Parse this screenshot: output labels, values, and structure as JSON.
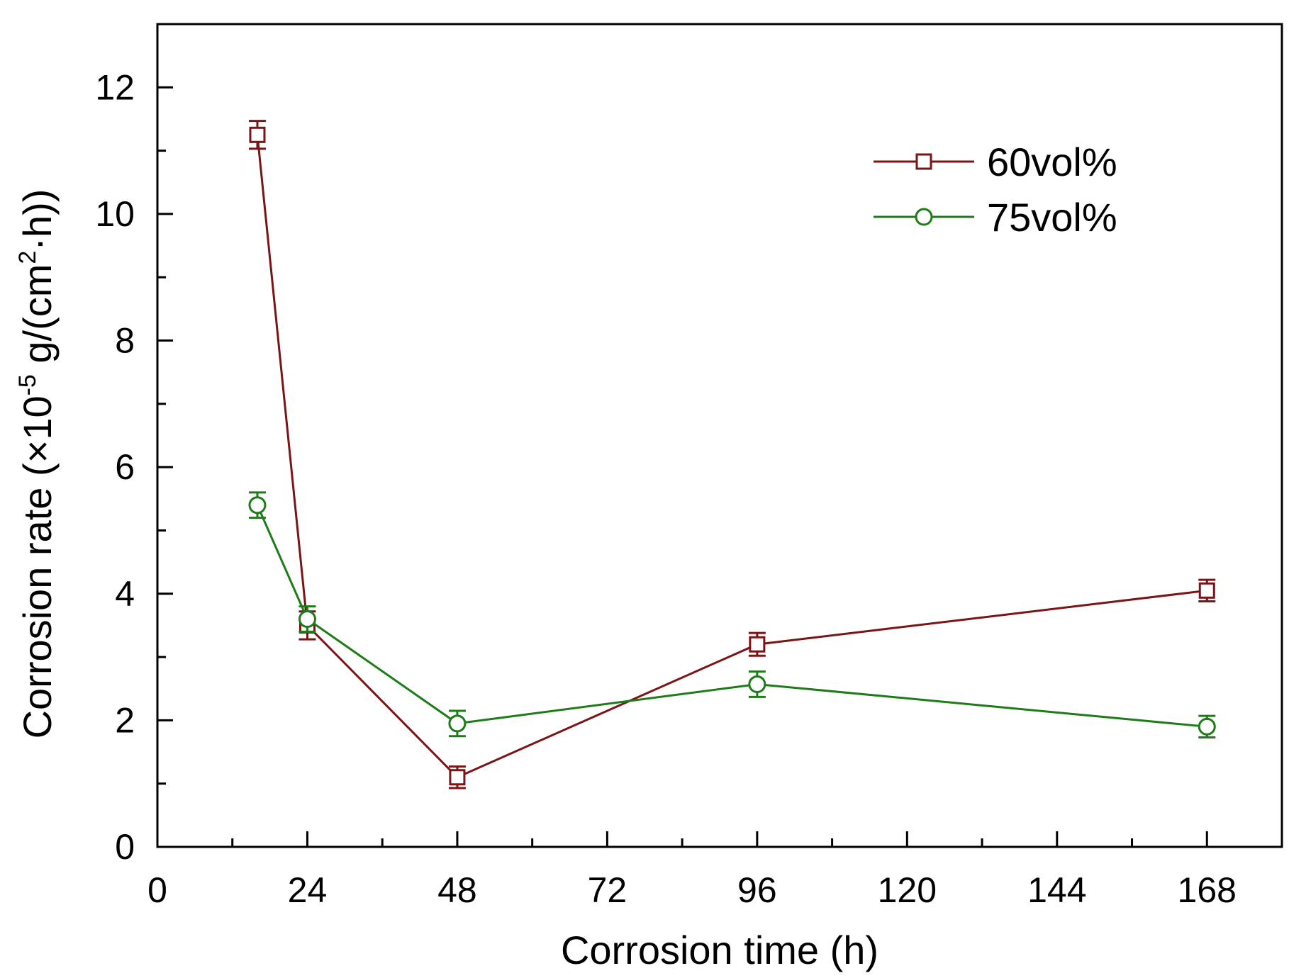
{
  "chart_data": {
    "type": "line",
    "title": "",
    "xlabel": "Corrosion time (h)",
    "ylabel": {
      "prefix": "Corrosion rate (×10",
      "exp1": "-5",
      "middle": " g/(cm",
      "exp2": "2",
      "suffix": "·h))"
    },
    "xlim": [
      0,
      180
    ],
    "ylim": [
      0,
      13
    ],
    "xticks": [
      0,
      24,
      48,
      72,
      96,
      120,
      144,
      168
    ],
    "yticks": [
      0,
      2,
      4,
      6,
      8,
      10,
      12
    ],
    "legend_position": "top-right",
    "series": [
      {
        "name": "60vol%",
        "color": "#7b1416",
        "marker": "square",
        "x": [
          16,
          24,
          48,
          96,
          168
        ],
        "y": [
          11.25,
          3.5,
          1.1,
          3.2,
          4.05
        ],
        "err": [
          0.22,
          0.22,
          0.17,
          0.18,
          0.17
        ]
      },
      {
        "name": "75vol%",
        "color": "#1d7b18",
        "marker": "circle",
        "x": [
          16,
          24,
          48,
          96,
          168
        ],
        "y": [
          5.4,
          3.6,
          1.95,
          2.57,
          1.9
        ],
        "err": [
          0.2,
          0.2,
          0.2,
          0.2,
          0.17
        ]
      }
    ]
  }
}
